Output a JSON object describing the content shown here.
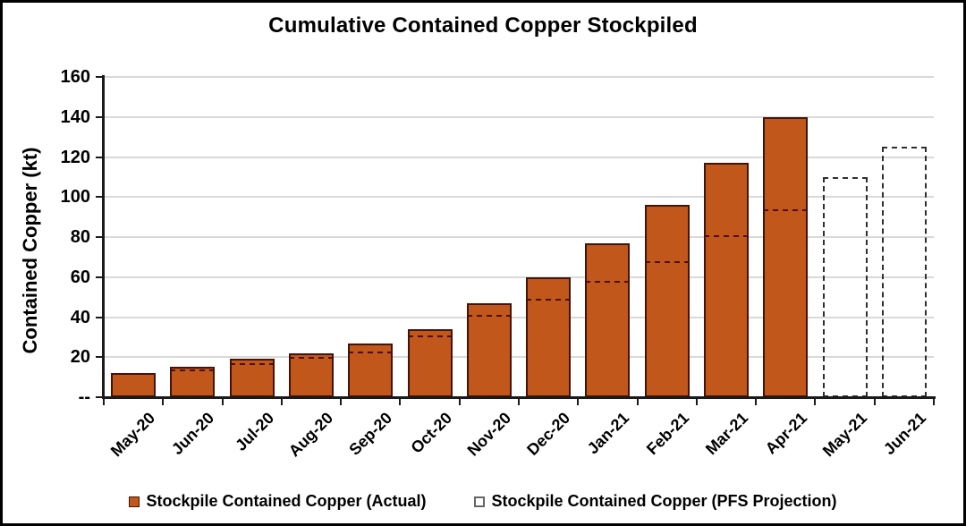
{
  "chart_data": {
    "type": "bar",
    "title": "Cumulative Contained Copper Stockpiled",
    "ylabel": "Contained Copper (kt)",
    "xlabel": "",
    "ylim": [
      0,
      160
    ],
    "ytick_interval": 20,
    "zero_tick_label": "--",
    "grid": true,
    "legend_position": "bottom",
    "categories": [
      "May-20",
      "Jun-20",
      "Jul-20",
      "Aug-20",
      "Sep-20",
      "Oct-20",
      "Nov-20",
      "Dec-20",
      "Jan-21",
      "Feb-21",
      "Mar-21",
      "Apr-21",
      "May-21",
      "Jun-21"
    ],
    "series": [
      {
        "name": "Stockpile Contained Copper (Actual)",
        "style": "filled-bar",
        "values": [
          12,
          15,
          19,
          22,
          27,
          34,
          47,
          60,
          77,
          96,
          117,
          140,
          null,
          null
        ]
      },
      {
        "name": "Stockpile Contained Copper (PFS Projection)",
        "style": "dashed-outline-bar",
        "values": [
          12,
          14,
          17,
          20,
          23,
          31,
          41,
          49,
          58,
          68,
          81,
          94,
          110,
          125
        ]
      }
    ],
    "colors": {
      "bar_fill": "#C2571B",
      "bar_border": "#40150A",
      "pfs_dash_on_bar": "#4A1005",
      "pfs_dash_alone": "#2F2F2F",
      "gridline": "#D9D9D9",
      "axis": "#1A1A1A",
      "text": "#000000"
    }
  }
}
